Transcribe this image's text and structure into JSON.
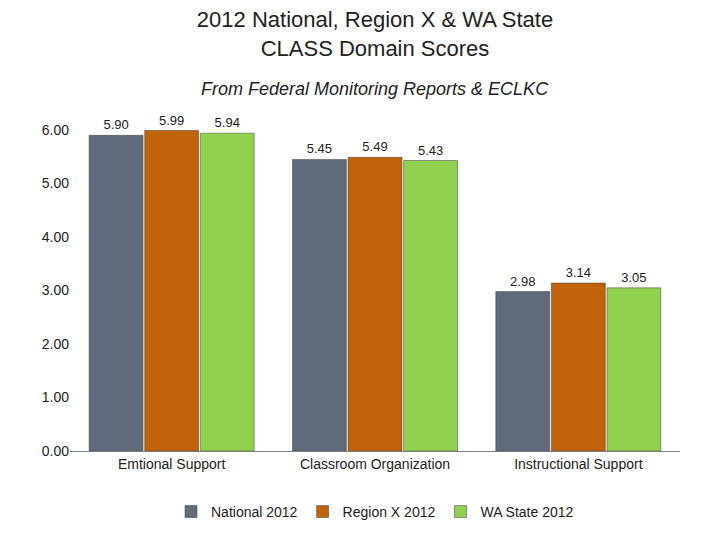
{
  "chart_data": {
    "type": "bar",
    "title": "2012 National, Region X & WA State\nCLASS Domain Scores",
    "subtitle": "From Federal Monitoring Reports & ECLKC",
    "categories": [
      "Emtional Support",
      "Classroom Organization",
      "Instructional Support"
    ],
    "series": [
      {
        "name": "National 2012",
        "color": "#5f6b7b",
        "values": [
          5.9,
          5.45,
          2.98
        ],
        "value_labels": [
          "5.90",
          "5.45",
          "2.98"
        ]
      },
      {
        "name": "Region X 2012",
        "color": "#c0630b",
        "values": [
          5.99,
          5.49,
          3.14
        ],
        "value_labels": [
          "5.99",
          "5.49",
          "3.14"
        ]
      },
      {
        "name": "WA State 2012",
        "color": "#92d050",
        "values": [
          5.94,
          5.43,
          3.05
        ],
        "value_labels": [
          "5.94",
          "5.43",
          "3.05"
        ]
      }
    ],
    "ylim": [
      0,
      6
    ],
    "yticks": [
      {
        "value": 0,
        "label": "0.00"
      },
      {
        "value": 1,
        "label": "1.00"
      },
      {
        "value": 2,
        "label": "2.00"
      },
      {
        "value": 3,
        "label": "3.00"
      },
      {
        "value": 4,
        "label": "4.00"
      },
      {
        "value": 5,
        "label": "5.00"
      },
      {
        "value": 6,
        "label": "6.00"
      }
    ],
    "grid": false,
    "legend": "bottom",
    "data_labels": true
  }
}
